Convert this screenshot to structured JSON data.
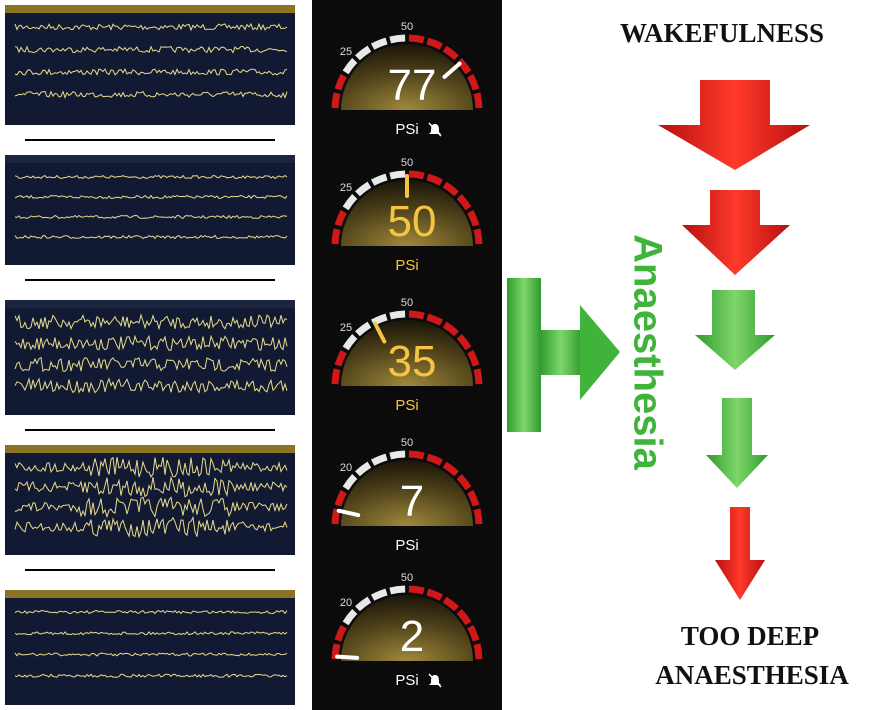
{
  "gauges": [
    {
      "value": 77,
      "low_label": 25,
      "high_label": 50,
      "unit": "PSi",
      "color": "#ffffff",
      "muted": true
    },
    {
      "value": 50,
      "low_label": 25,
      "high_label": 50,
      "unit": "PSi",
      "color": "#f5c542",
      "muted": false
    },
    {
      "value": 35,
      "low_label": 25,
      "high_label": 50,
      "unit": "PSi",
      "color": "#f5c542",
      "muted": false
    },
    {
      "value": 7,
      "low_label": 20,
      "high_label": 50,
      "unit": "PSi",
      "color": "#ffffff",
      "muted": false
    },
    {
      "value": 2,
      "low_label": 20,
      "high_label": 50,
      "unit": "PSi",
      "color": "#ffffff",
      "muted": true
    }
  ],
  "labels": {
    "top": "WAKEFULNESS",
    "middle": "Anaesthesia",
    "bottom_line1": "TOO DEEP",
    "bottom_line2": "ANAESTHESIA"
  }
}
